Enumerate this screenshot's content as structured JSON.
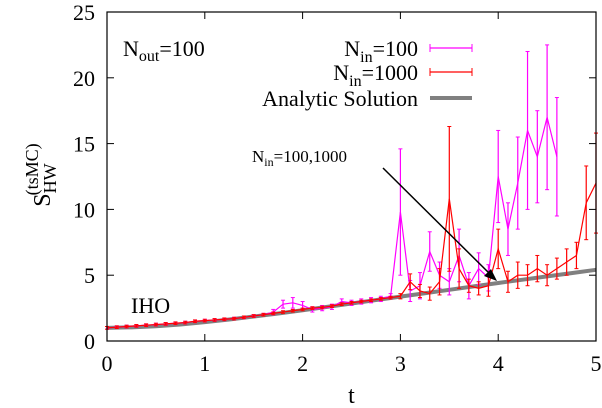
{
  "chart_data": {
    "type": "line",
    "xlabel": "t",
    "ylabel": "S_HW^(tsMC)",
    "ylabel_main": "S",
    "ylabel_sub": "HW",
    "ylabel_sup": "(tsMC)",
    "xlim": [
      0,
      5
    ],
    "ylim": [
      0,
      25
    ],
    "xticks": [
      0,
      1,
      2,
      3,
      4,
      5
    ],
    "yticks": [
      0,
      5,
      10,
      15,
      20,
      25
    ],
    "grid": false,
    "legend_position": "top-right",
    "annotations": {
      "nout": {
        "main": "N",
        "sub": "out",
        "rest": "=100"
      },
      "iho": "IHO",
      "arrow_label": {
        "main": "N",
        "sub": "in",
        "rest": "=100,1000"
      }
    },
    "series": [
      {
        "name": "N_in=100",
        "legend": {
          "main": "N",
          "sub": "in",
          "rest": "=100"
        },
        "color": "#ff00ff",
        "style": "errorlines",
        "x": [
          0.0,
          0.1,
          0.2,
          0.3,
          0.4,
          0.5,
          0.6,
          0.7,
          0.8,
          0.9,
          1.0,
          1.1,
          1.2,
          1.3,
          1.4,
          1.5,
          1.6,
          1.7,
          1.8,
          1.9,
          2.0,
          2.1,
          2.2,
          2.3,
          2.4,
          2.5,
          2.6,
          2.7,
          2.8,
          2.9,
          3.0,
          3.1,
          3.2,
          3.3,
          3.4,
          3.5,
          3.6,
          3.7,
          3.8,
          3.9,
          4.0,
          4.1,
          4.2,
          4.3,
          4.4,
          4.5,
          4.6
        ],
        "y": [
          1.0,
          1.05,
          1.1,
          1.15,
          1.2,
          1.25,
          1.3,
          1.35,
          1.4,
          1.5,
          1.55,
          1.6,
          1.65,
          1.7,
          1.8,
          1.9,
          2.0,
          2.2,
          2.8,
          2.9,
          2.7,
          2.4,
          2.5,
          2.6,
          3.0,
          2.9,
          3.0,
          3.1,
          3.2,
          3.4,
          9.8,
          3.8,
          4.2,
          6.8,
          5.0,
          4.5,
          6.5,
          4.2,
          5.5,
          4.8,
          12.5,
          8.5,
          12.0,
          16.0,
          14.0,
          17.0,
          14.0
        ],
        "err": [
          0.1,
          0.1,
          0.1,
          0.1,
          0.1,
          0.1,
          0.1,
          0.1,
          0.1,
          0.1,
          0.1,
          0.1,
          0.1,
          0.1,
          0.1,
          0.1,
          0.1,
          0.2,
          0.3,
          0.4,
          0.3,
          0.2,
          0.2,
          0.2,
          0.2,
          0.2,
          0.2,
          0.2,
          0.2,
          0.2,
          4.8,
          0.8,
          1.0,
          1.5,
          1.0,
          1.0,
          2.0,
          1.0,
          1.2,
          1.0,
          3.5,
          2.0,
          3.5,
          6.0,
          3.5,
          5.5,
          4.5
        ]
      },
      {
        "name": "N_in=1000",
        "legend": {
          "main": "N",
          "sub": "in",
          "rest": "=1000"
        },
        "color": "#ff0000",
        "style": "errorlines",
        "x": [
          0.0,
          0.1,
          0.2,
          0.3,
          0.4,
          0.5,
          0.6,
          0.7,
          0.8,
          0.9,
          1.0,
          1.1,
          1.2,
          1.3,
          1.4,
          1.5,
          1.6,
          1.7,
          1.8,
          1.9,
          2.0,
          2.1,
          2.2,
          2.3,
          2.4,
          2.5,
          2.6,
          2.7,
          2.8,
          2.9,
          3.0,
          3.1,
          3.2,
          3.3,
          3.4,
          3.5,
          3.6,
          3.7,
          3.8,
          3.9,
          4.0,
          4.1,
          4.2,
          4.3,
          4.4,
          4.5,
          4.6,
          4.7,
          4.8,
          4.9,
          5.0
        ],
        "y": [
          1.0,
          1.05,
          1.1,
          1.15,
          1.2,
          1.25,
          1.3,
          1.35,
          1.4,
          1.5,
          1.55,
          1.6,
          1.65,
          1.7,
          1.8,
          1.9,
          2.0,
          2.1,
          2.2,
          2.3,
          2.4,
          2.5,
          2.55,
          2.65,
          2.8,
          2.9,
          3.0,
          3.1,
          3.2,
          3.3,
          3.4,
          4.5,
          3.8,
          3.6,
          4.5,
          10.8,
          5.5,
          4.2,
          4.0,
          4.2,
          7.0,
          4.5,
          5.0,
          5.0,
          5.5,
          5.0,
          5.5,
          6.0,
          6.5,
          10.5,
          12.0
        ],
        "err": [
          0.1,
          0.1,
          0.1,
          0.1,
          0.1,
          0.1,
          0.1,
          0.1,
          0.1,
          0.1,
          0.1,
          0.1,
          0.1,
          0.1,
          0.1,
          0.1,
          0.1,
          0.1,
          0.1,
          0.1,
          0.1,
          0.1,
          0.1,
          0.1,
          0.1,
          0.1,
          0.1,
          0.1,
          0.1,
          0.1,
          0.2,
          0.6,
          0.5,
          0.5,
          1.0,
          5.5,
          1.5,
          0.5,
          0.5,
          0.8,
          1.5,
          0.8,
          1.0,
          0.8,
          1.0,
          0.8,
          0.8,
          1.0,
          1.0,
          2.8,
          3.8
        ]
      },
      {
        "name": "Analytic Solution",
        "legend": {
          "main": "Analytic Solution",
          "sub": "",
          "rest": ""
        },
        "color": "#808080",
        "style": "thick-line",
        "x": [
          0.0,
          0.25,
          0.5,
          0.75,
          1.0,
          1.25,
          1.5,
          1.75,
          2.0,
          2.25,
          2.5,
          2.75,
          3.0,
          3.25,
          3.5,
          3.75,
          4.0,
          4.25,
          4.5,
          4.75,
          5.0
        ],
        "y": [
          1.0,
          1.04,
          1.12,
          1.25,
          1.43,
          1.63,
          1.86,
          2.09,
          2.34,
          2.59,
          2.85,
          3.11,
          3.37,
          3.63,
          3.89,
          4.15,
          4.41,
          4.66,
          4.91,
          5.16,
          5.41
        ]
      }
    ]
  }
}
